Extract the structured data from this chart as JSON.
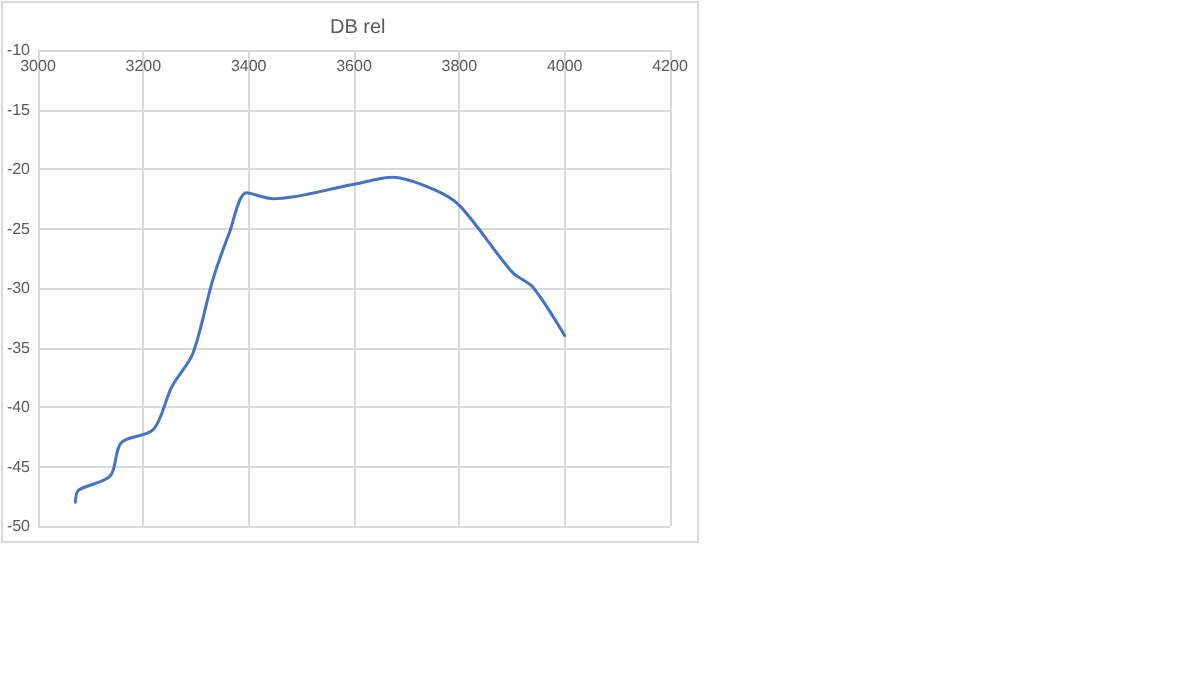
{
  "chart_data": {
    "type": "line",
    "title": "DB rel",
    "x": [
      3071,
      3077,
      3137,
      3158,
      3219,
      3254,
      3294,
      3332,
      3363,
      3396,
      3446,
      3598,
      3674,
      3750,
      3801,
      3901,
      3939,
      4000
    ],
    "series": [
      {
        "color": "#4472c4",
        "values": [
          -48,
          -47,
          -45.8,
          -43,
          -41.9,
          -38.3,
          -35.5,
          -29.3,
          -25.4,
          -22,
          -22.5,
          -21.3,
          -20.7,
          -21.7,
          -23.1,
          -28.7,
          -29.9,
          -34
        ]
      }
    ],
    "xlim": [
      3000,
      4200
    ],
    "xticks": [
      3000,
      3200,
      3400,
      3600,
      3800,
      4000,
      4200
    ],
    "ylim": [
      -50,
      -10
    ],
    "yticks": [
      -50,
      -45,
      -40,
      -35,
      -30,
      -25,
      -20,
      -15,
      -10
    ],
    "grid": true,
    "marker": "none",
    "line_style": "solid"
  }
}
